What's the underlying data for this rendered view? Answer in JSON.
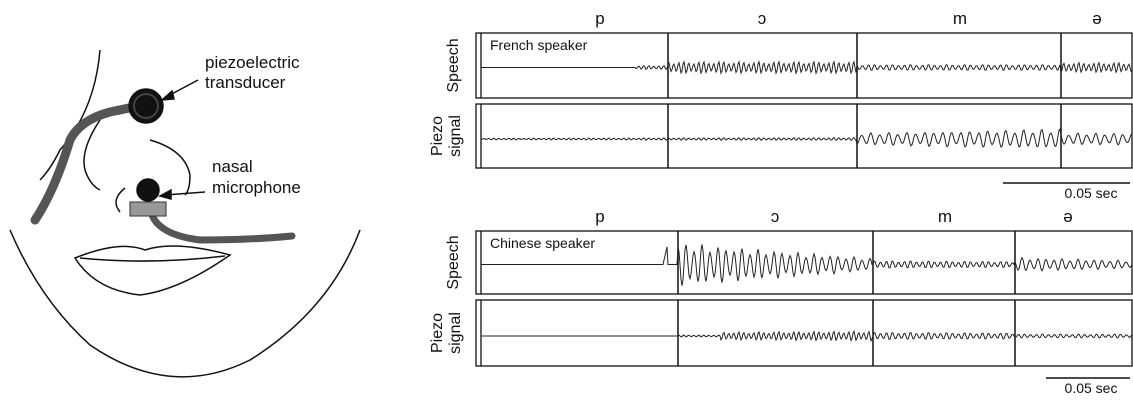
{
  "diagram": {
    "transducer_label": [
      "piezoelectric",
      "transducer"
    ],
    "microphone_label": [
      "nasal",
      "microphone"
    ],
    "panels": [
      {
        "phonemes": [
          "p",
          "ɔ",
          "m",
          "ə"
        ],
        "speaker": "French speaker",
        "speech_label": "Speech",
        "piezo_label": [
          "Piezo",
          "signal"
        ],
        "scale": "0.05 sec"
      },
      {
        "phonemes": [
          "p",
          "ɔ",
          "m",
          "ə"
        ],
        "speaker": "Chinese speaker",
        "speech_label": "Speech",
        "piezo_label": [
          "Piezo",
          "signal"
        ],
        "scale": "0.05 sec"
      }
    ]
  }
}
